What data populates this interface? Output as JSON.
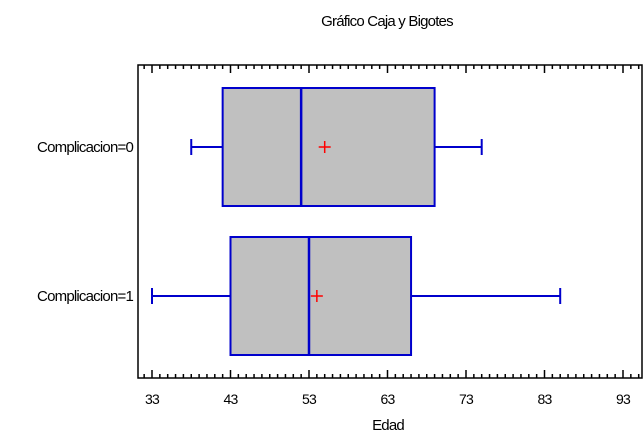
{
  "chart_data": {
    "type": "boxplot",
    "title": "Gráfico Caja y Bigotes",
    "xlabel": "Edad",
    "ylabel": "",
    "xlim": [
      31,
      95
    ],
    "x_ticks": [
      33,
      43,
      53,
      63,
      73,
      83,
      93
    ],
    "x_tick_labels": [
      "33",
      "43",
      "53",
      "63",
      "73",
      "83",
      "93"
    ],
    "categories": [
      "Complicacion=0",
      "Complicacion=1"
    ],
    "series": [
      {
        "category": "Complicacion=0",
        "whisker_low": 38,
        "q1": 42,
        "median": 52,
        "q3": 69,
        "whisker_high": 75,
        "mean": 55
      },
      {
        "category": "Complicacion=1",
        "whisker_low": 33,
        "q1": 43,
        "median": 53,
        "q3": 66,
        "whisker_high": 85,
        "mean": 54
      }
    ],
    "grid": false,
    "legend": "none",
    "colors": {
      "box_fill": "#c0c0c0",
      "box_stroke": "#0000cc",
      "mean_marker": "#ff0000",
      "axis": "#000000"
    }
  }
}
